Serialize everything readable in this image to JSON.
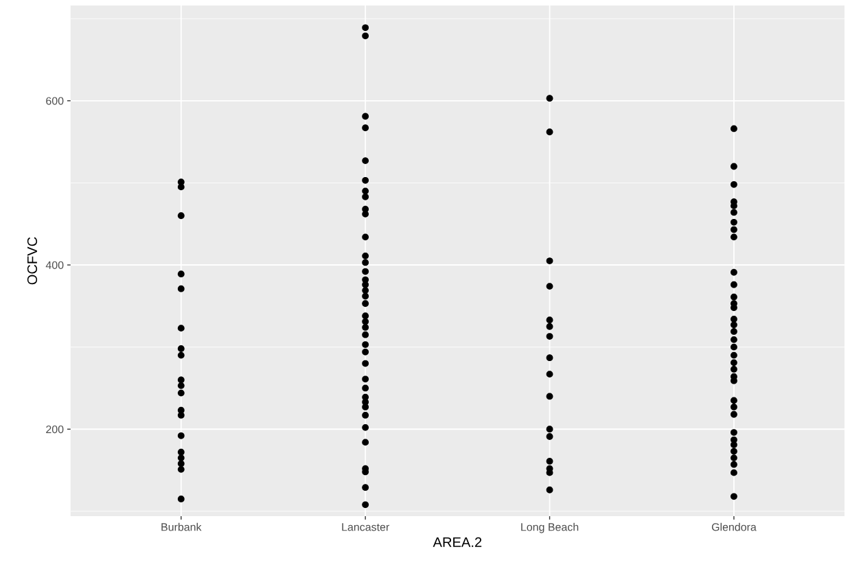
{
  "chart_data": {
    "type": "scatter",
    "xlabel": "AREA.2",
    "ylabel": "OCFVC",
    "categories": [
      "Burbank",
      "Lancaster",
      "Long Beach",
      "Glendora"
    ],
    "ylim": [
      94,
      716
    ],
    "yticks": [
      200,
      400,
      600
    ],
    "grid": true,
    "marker": "circle",
    "legend": false,
    "series": [
      {
        "color": "#000000",
        "x": [
          "Burbank",
          "Burbank",
          "Burbank",
          "Burbank",
          "Burbank",
          "Burbank",
          "Burbank",
          "Burbank",
          "Burbank",
          "Burbank",
          "Burbank",
          "Burbank",
          "Burbank",
          "Burbank",
          "Burbank",
          "Burbank",
          "Burbank",
          "Burbank",
          "Burbank"
        ],
        "values": [
          501,
          495,
          460,
          389,
          371,
          323,
          298,
          290,
          260,
          253,
          244,
          223,
          217,
          192,
          172,
          165,
          158,
          151,
          115
        ]
      },
      {
        "color": "#000000",
        "x": [
          "Lancaster",
          "Lancaster",
          "Lancaster",
          "Lancaster",
          "Lancaster",
          "Lancaster",
          "Lancaster",
          "Lancaster",
          "Lancaster",
          "Lancaster",
          "Lancaster",
          "Lancaster",
          "Lancaster",
          "Lancaster",
          "Lancaster",
          "Lancaster",
          "Lancaster",
          "Lancaster",
          "Lancaster",
          "Lancaster",
          "Lancaster",
          "Lancaster",
          "Lancaster",
          "Lancaster",
          "Lancaster",
          "Lancaster",
          "Lancaster",
          "Lancaster",
          "Lancaster",
          "Lancaster",
          "Lancaster",
          "Lancaster",
          "Lancaster",
          "Lancaster",
          "Lancaster",
          "Lancaster",
          "Lancaster",
          "Lancaster"
        ],
        "values": [
          689,
          679,
          581,
          567,
          527,
          503,
          490,
          483,
          468,
          462,
          434,
          411,
          403,
          392,
          382,
          376,
          369,
          362,
          353,
          338,
          331,
          324,
          315,
          303,
          294,
          280,
          261,
          250,
          239,
          233,
          227,
          217,
          202,
          184,
          152,
          148,
          129,
          108
        ]
      },
      {
        "color": "#000000",
        "x": [
          "Long Beach",
          "Long Beach",
          "Long Beach",
          "Long Beach",
          "Long Beach",
          "Long Beach",
          "Long Beach",
          "Long Beach",
          "Long Beach",
          "Long Beach",
          "Long Beach",
          "Long Beach",
          "Long Beach",
          "Long Beach",
          "Long Beach",
          "Long Beach"
        ],
        "values": [
          603,
          562,
          405,
          374,
          333,
          325,
          313,
          287,
          267,
          240,
          200,
          191,
          161,
          152,
          147,
          126
        ]
      },
      {
        "color": "#000000",
        "x": [
          "Glendora",
          "Glendora",
          "Glendora",
          "Glendora",
          "Glendora",
          "Glendora",
          "Glendora",
          "Glendora",
          "Glendora",
          "Glendora",
          "Glendora",
          "Glendora",
          "Glendora",
          "Glendora",
          "Glendora",
          "Glendora",
          "Glendora",
          "Glendora",
          "Glendora",
          "Glendora",
          "Glendora",
          "Glendora",
          "Glendora",
          "Glendora",
          "Glendora",
          "Glendora",
          "Glendora",
          "Glendora",
          "Glendora",
          "Glendora",
          "Glendora",
          "Glendora",
          "Glendora",
          "Glendora",
          "Glendora"
        ],
        "values": [
          566,
          520,
          498,
          477,
          472,
          464,
          452,
          443,
          434,
          391,
          376,
          361,
          353,
          348,
          334,
          327,
          319,
          309,
          300,
          290,
          281,
          273,
          264,
          259,
          235,
          227,
          218,
          196,
          187,
          181,
          173,
          165,
          157,
          147,
          118
        ]
      }
    ]
  }
}
